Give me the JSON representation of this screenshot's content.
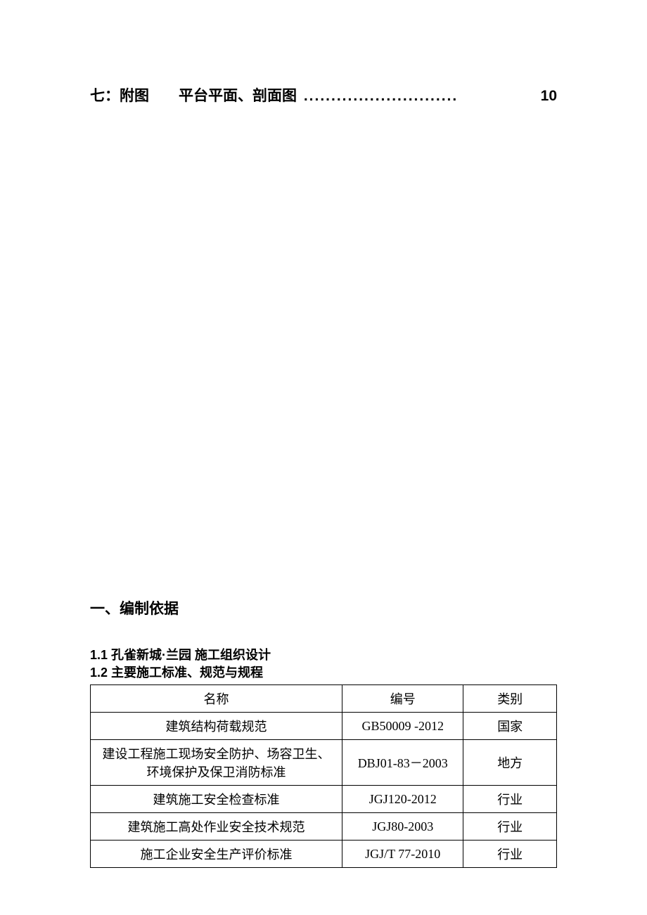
{
  "toc": {
    "prefix": "七：附图",
    "spacer": "　　",
    "title": "平台平面、剖面图",
    "dots": "............................",
    "page": "10"
  },
  "section1": {
    "heading": "一、编制依据",
    "sub1": "1.1 孔雀新城·兰园 施工组织设计",
    "sub2": "1.2 主要施工标准、规范与规程"
  },
  "table": {
    "columns": [
      "名称",
      "编号",
      "类别"
    ],
    "rows": [
      [
        "建筑结构荷载规范",
        "GB50009 -2012",
        "国家"
      ],
      [
        "建设工程施工现场安全防护、场容卫生、环境保护及保卫消防标准",
        "DBJ01-83－2003",
        "地方"
      ],
      [
        "建筑施工安全检查标准",
        "JGJ120-2012",
        "行业"
      ],
      [
        "建筑施工高处作业安全技术规范",
        "JGJ80-2003",
        "行业"
      ],
      [
        "施工企业安全生产评价标准",
        "JGJ/T 77-2010",
        "行业"
      ]
    ]
  }
}
